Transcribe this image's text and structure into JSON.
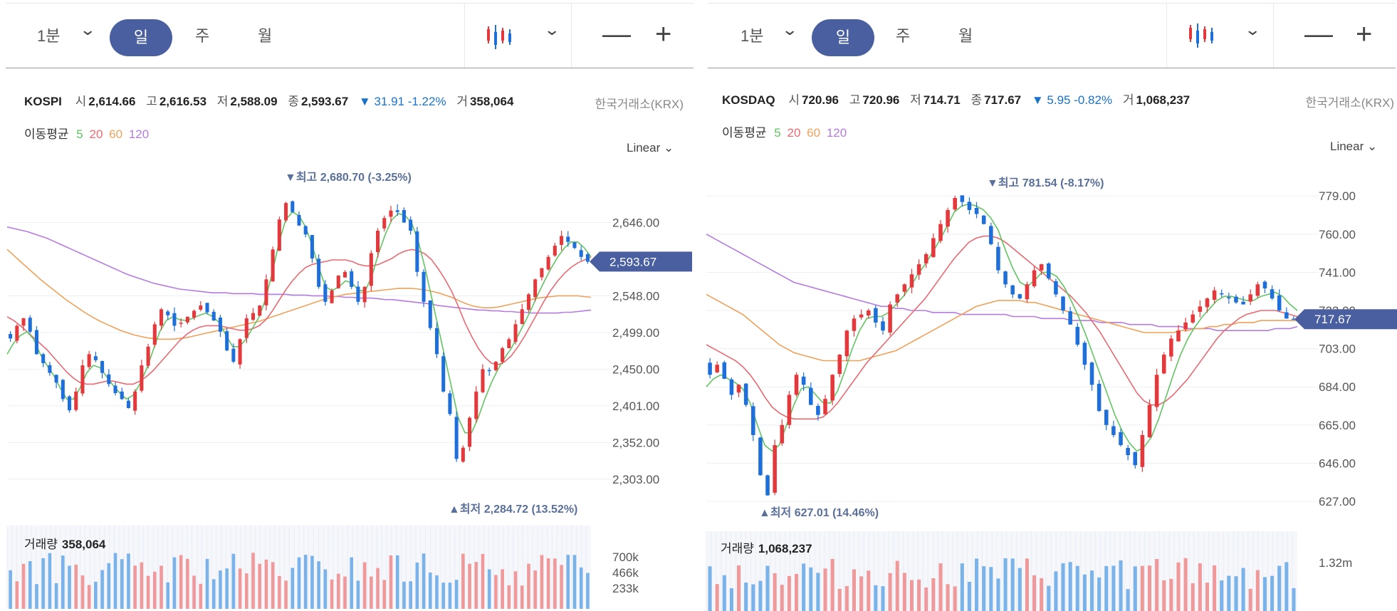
{
  "toolbar": {
    "interval": "1분",
    "periods": [
      "일",
      "주",
      "월"
    ],
    "active_period": "일",
    "zoom_out": "—",
    "zoom_in": "+",
    "chart_type_icon": "candlestick-icon",
    "dropdown_icon": "chevron-down-icon"
  },
  "colors": {
    "up": "#e4393c",
    "down": "#1e6fd9",
    "ma5": "#62c462",
    "ma20": "#e86a72",
    "ma60": "#f0a15a",
    "ma120": "#b47be0",
    "accent": "#4a5fa0",
    "change": "#1a73c8"
  },
  "panels": [
    {
      "code": "KOSPI",
      "open_label": "시",
      "open": "2,614.66",
      "high_label": "고",
      "high": "2,616.53",
      "low_label": "저",
      "low": "2,588.09",
      "close_label": "종",
      "close": "2,593.67",
      "change": "▼ 31.91 -1.22%",
      "volume_label": "거",
      "volume": "358,064",
      "source": "한국거래소(KRX)",
      "ma_title": "이동평균",
      "ma_periods": [
        "5",
        "20",
        "60",
        "120"
      ],
      "scale": "Linear",
      "max_label": "▼최고 2,680.70 (-3.25%)",
      "min_label": "▲최저 2,284.72 (13.52%)",
      "price_tag": "2,593.67",
      "vol_title": "거래량",
      "vol_value": "358,064"
    },
    {
      "code": "KOSDAQ",
      "open_label": "시",
      "open": "720.96",
      "high_label": "고",
      "high": "720.96",
      "low_label": "저",
      "low": "714.71",
      "close_label": "종",
      "close": "717.67",
      "change": "▼ 5.95 -0.82%",
      "volume_label": "거",
      "volume": "1,068,237",
      "source": "한국거래소(KRX)",
      "ma_title": "이동평균",
      "ma_periods": [
        "5",
        "20",
        "60",
        "120"
      ],
      "scale": "Linear",
      "max_label": "▼최고 781.54 (-8.17%)",
      "min_label": "▲최저 627.01 (14.46%)",
      "price_tag": "717.67",
      "vol_title": "거래량",
      "vol_value": "1,068,237"
    }
  ],
  "chart_data": [
    {
      "type": "candlestick",
      "title": "KOSPI",
      "y_ticks": [
        "2,646.00",
        "2,548.00",
        "2,499.00",
        "2,450.00",
        "2,401.00",
        "2,352.00",
        "2,303.00"
      ],
      "y_tick_values": [
        2646,
        2548,
        2499,
        2450,
        2401,
        2352,
        2303
      ],
      "ylim": [
        2284.72,
        2680.7
      ],
      "high": 2680.7,
      "low": 2284.72,
      "last": 2593.67,
      "close_series": [
        2491,
        2508,
        2518,
        2500,
        2470,
        2458,
        2445,
        2432,
        2410,
        2395,
        2420,
        2455,
        2470,
        2462,
        2445,
        2430,
        2418,
        2410,
        2398,
        2420,
        2455,
        2480,
        2510,
        2530,
        2522,
        2508,
        2512,
        2520,
        2528,
        2535,
        2526,
        2515,
        2500,
        2475,
        2460,
        2490,
        2518,
        2525,
        2535,
        2570,
        2610,
        2650,
        2672,
        2660,
        2642,
        2630,
        2598,
        2560,
        2540,
        2555,
        2575,
        2580,
        2560,
        2540,
        2560,
        2605,
        2635,
        2652,
        2662,
        2660,
        2646,
        2635,
        2580,
        2540,
        2505,
        2470,
        2420,
        2390,
        2330,
        2345,
        2385,
        2420,
        2450,
        2448,
        2460,
        2478,
        2490,
        2510,
        2530,
        2550,
        2570,
        2585,
        2600,
        2615,
        2628,
        2620,
        2612,
        2600,
        2593.67
      ],
      "ma_series": {
        "5": [
          2470,
          2485,
          2495,
          2500,
          2490,
          2470,
          2455,
          2442,
          2425,
          2410,
          2410,
          2425,
          2445,
          2455,
          2452,
          2440,
          2428,
          2418,
          2410,
          2415,
          2430,
          2450,
          2475,
          2500,
          2515,
          2520,
          2516,
          2515,
          2518,
          2522,
          2525,
          2520,
          2512,
          2495,
          2480,
          2480,
          2490,
          2505,
          2520,
          2545,
          2580,
          2620,
          2650,
          2660,
          2655,
          2640,
          2615,
          2585,
          2560,
          2555,
          2560,
          2568,
          2565,
          2555,
          2555,
          2575,
          2605,
          2630,
          2650,
          2658,
          2655,
          2645,
          2620,
          2585,
          2545,
          2505,
          2465,
          2425,
          2385,
          2365,
          2365,
          2385,
          2410,
          2432,
          2450,
          2465,
          2478,
          2495,
          2512,
          2530,
          2550,
          2568,
          2585,
          2600,
          2612,
          2620,
          2620,
          2612,
          2600
        ],
        "20": [
          2520,
          2515,
          2508,
          2500,
          2492,
          2484,
          2476,
          2466,
          2456,
          2446,
          2438,
          2432,
          2430,
          2430,
          2432,
          2434,
          2434,
          2432,
          2430,
          2430,
          2434,
          2440,
          2448,
          2458,
          2468,
          2478,
          2488,
          2496,
          2502,
          2506,
          2508,
          2508,
          2508,
          2506,
          2504,
          2502,
          2502,
          2504,
          2508,
          2516,
          2528,
          2542,
          2556,
          2568,
          2578,
          2586,
          2590,
          2592,
          2594,
          2596,
          2596,
          2596,
          2594,
          2590,
          2588,
          2588,
          2590,
          2594,
          2598,
          2604,
          2608,
          2610,
          2608,
          2604,
          2596,
          2584,
          2570,
          2554,
          2534,
          2512,
          2494,
          2478,
          2466,
          2458,
          2456,
          2460,
          2468,
          2480,
          2494,
          2510,
          2526,
          2542,
          2556,
          2568,
          2578,
          2586,
          2592,
          2596,
          2600
        ],
        "60": [
          2610,
          2602,
          2594,
          2586,
          2578,
          2570,
          2563,
          2556,
          2549,
          2542,
          2536,
          2530,
          2524,
          2519,
          2514,
          2510,
          2506,
          2502,
          2499,
          2496,
          2494,
          2492,
          2491,
          2490,
          2490,
          2490,
          2491,
          2492,
          2494,
          2496,
          2498,
          2500,
          2502,
          2504,
          2506,
          2508,
          2510,
          2512,
          2514,
          2517,
          2520,
          2523,
          2526,
          2529,
          2532,
          2535,
          2538,
          2541,
          2544,
          2546,
          2548,
          2550,
          2551,
          2552,
          2553,
          2554,
          2555,
          2556,
          2557,
          2558,
          2558,
          2558,
          2557,
          2556,
          2554,
          2552,
          2549,
          2546,
          2542,
          2538,
          2535,
          2533,
          2532,
          2532,
          2533,
          2535,
          2537,
          2539,
          2541,
          2543,
          2545,
          2546,
          2547,
          2548,
          2548,
          2548,
          2548,
          2547,
          2546
        ],
        "120": [
          2640,
          2638,
          2636,
          2634,
          2631,
          2628,
          2625,
          2621,
          2617,
          2613,
          2609,
          2605,
          2601,
          2597,
          2593,
          2589,
          2585,
          2581,
          2577,
          2574,
          2571,
          2568,
          2565,
          2563,
          2561,
          2559,
          2557,
          2556,
          2555,
          2554,
          2553,
          2552,
          2552,
          2552,
          2551,
          2551,
          2551,
          2551,
          2550,
          2550,
          2550,
          2550,
          2550,
          2549,
          2549,
          2549,
          2548,
          2548,
          2548,
          2547,
          2547,
          2546,
          2546,
          2545,
          2545,
          2545,
          2544,
          2543,
          2543,
          2542,
          2541,
          2540,
          2539,
          2538,
          2537,
          2535,
          2534,
          2533,
          2532,
          2531,
          2530,
          2529,
          2529,
          2528,
          2528,
          2527,
          2527,
          2526,
          2526,
          2525,
          2525,
          2525,
          2525,
          2525,
          2526,
          2526,
          2527,
          2528,
          2529
        ]
      },
      "volume": {
        "ticks": [
          "700k",
          "466k",
          "233k"
        ],
        "tick_values": [
          700000,
          466000,
          233000
        ],
        "max": 820000,
        "last": 358064
      }
    },
    {
      "type": "candlestick",
      "title": "KOSDAQ",
      "y_ticks": [
        "779.00",
        "760.00",
        "741.00",
        "722.00",
        "703.00",
        "684.00",
        "665.00",
        "646.00",
        "627.00"
      ],
      "y_tick_values": [
        779,
        760,
        741,
        722,
        703,
        684,
        665,
        646,
        627
      ],
      "ylim": [
        627.01,
        781.54
      ],
      "high": 781.54,
      "low": 627.01,
      "last": 717.67,
      "close_series": [
        690,
        695,
        688,
        680,
        685,
        675,
        660,
        640,
        630,
        655,
        665,
        680,
        690,
        685,
        675,
        670,
        678,
        690,
        700,
        712,
        718,
        720,
        722,
        716,
        712,
        725,
        730,
        735,
        740,
        745,
        750,
        758,
        765,
        772,
        778,
        776,
        772,
        770,
        765,
        755,
        742,
        735,
        730,
        728,
        735,
        742,
        745,
        738,
        730,
        722,
        715,
        705,
        695,
        685,
        672,
        665,
        660,
        655,
        650,
        645,
        660,
        675,
        690,
        700,
        708,
        712,
        716,
        720,
        724,
        728,
        732,
        730,
        728,
        726,
        725,
        730,
        735,
        733,
        728,
        722,
        718,
        717.67
      ],
      "ma_series": {
        "5": [
          684,
          688,
          690,
          688,
          686,
          683,
          676,
          665,
          655,
          652,
          655,
          665,
          675,
          683,
          684,
          680,
          676,
          676,
          682,
          692,
          703,
          712,
          718,
          719,
          719,
          721,
          725,
          729,
          734,
          740,
          745,
          751,
          757,
          764,
          771,
          774,
          775,
          774,
          772,
          768,
          762,
          752,
          743,
          736,
          734,
          737,
          741,
          741,
          739,
          734,
          727,
          719,
          710,
          700,
          690,
          680,
          670,
          662,
          656,
          652,
          654,
          659,
          668,
          679,
          690,
          700,
          708,
          714,
          719,
          723,
          727,
          729,
          729,
          728,
          727,
          727,
          729,
          730,
          731,
          729,
          725,
          722
        ],
        "20": [
          705,
          703,
          701,
          699,
          697,
          694,
          690,
          685,
          679,
          674,
          671,
          669,
          668,
          668,
          668,
          668,
          669,
          672,
          676,
          681,
          686,
          691,
          696,
          700,
          704,
          708,
          712,
          716,
          720,
          724,
          728,
          733,
          738,
          743,
          748,
          752,
          756,
          758,
          759,
          759,
          758,
          756,
          753,
          750,
          747,
          744,
          741,
          738,
          735,
          732,
          729,
          725,
          721,
          716,
          711,
          705,
          699,
          693,
          687,
          681,
          677,
          675,
          675,
          677,
          680,
          684,
          688,
          693,
          698,
          703,
          708,
          712,
          715,
          718,
          720,
          721,
          722,
          722,
          722,
          721,
          720,
          719
        ],
        "60": [
          730,
          728,
          726,
          724,
          722,
          720,
          717,
          714,
          711,
          708,
          705,
          703,
          701,
          700,
          699,
          698,
          697,
          697,
          697,
          697,
          697,
          697,
          698,
          699,
          700,
          701,
          702,
          704,
          706,
          708,
          710,
          712,
          714,
          716,
          718,
          720,
          722,
          724,
          725,
          726,
          727,
          727,
          727,
          727,
          726,
          726,
          725,
          724,
          723,
          722,
          721,
          720,
          719,
          718,
          717,
          716,
          715,
          714,
          713,
          712,
          711,
          711,
          711,
          711,
          711,
          712,
          712,
          713,
          713,
          714,
          714,
          715,
          715,
          716,
          716,
          716,
          717,
          717,
          717,
          717,
          717,
          717
        ],
        "120": [
          760,
          758,
          756,
          754,
          752,
          750,
          748,
          746,
          744,
          742,
          740,
          738,
          736,
          735,
          734,
          733,
          732,
          731,
          730,
          729,
          728,
          727,
          726,
          725,
          724,
          724,
          723,
          723,
          722,
          722,
          722,
          721,
          721,
          721,
          721,
          720,
          720,
          720,
          720,
          720,
          720,
          720,
          719,
          719,
          719,
          719,
          718,
          718,
          718,
          718,
          717,
          717,
          717,
          717,
          716,
          716,
          716,
          716,
          715,
          715,
          715,
          715,
          714,
          714,
          714,
          714,
          713,
          713,
          713,
          713,
          712,
          712,
          712,
          712,
          712,
          712,
          712,
          712,
          713,
          713,
          713,
          714
        ]
      },
      "volume": {
        "ticks": [
          "1.32m"
        ],
        "tick_values": [
          1320000
        ],
        "max": 1900000,
        "last": 1068237
      }
    }
  ]
}
